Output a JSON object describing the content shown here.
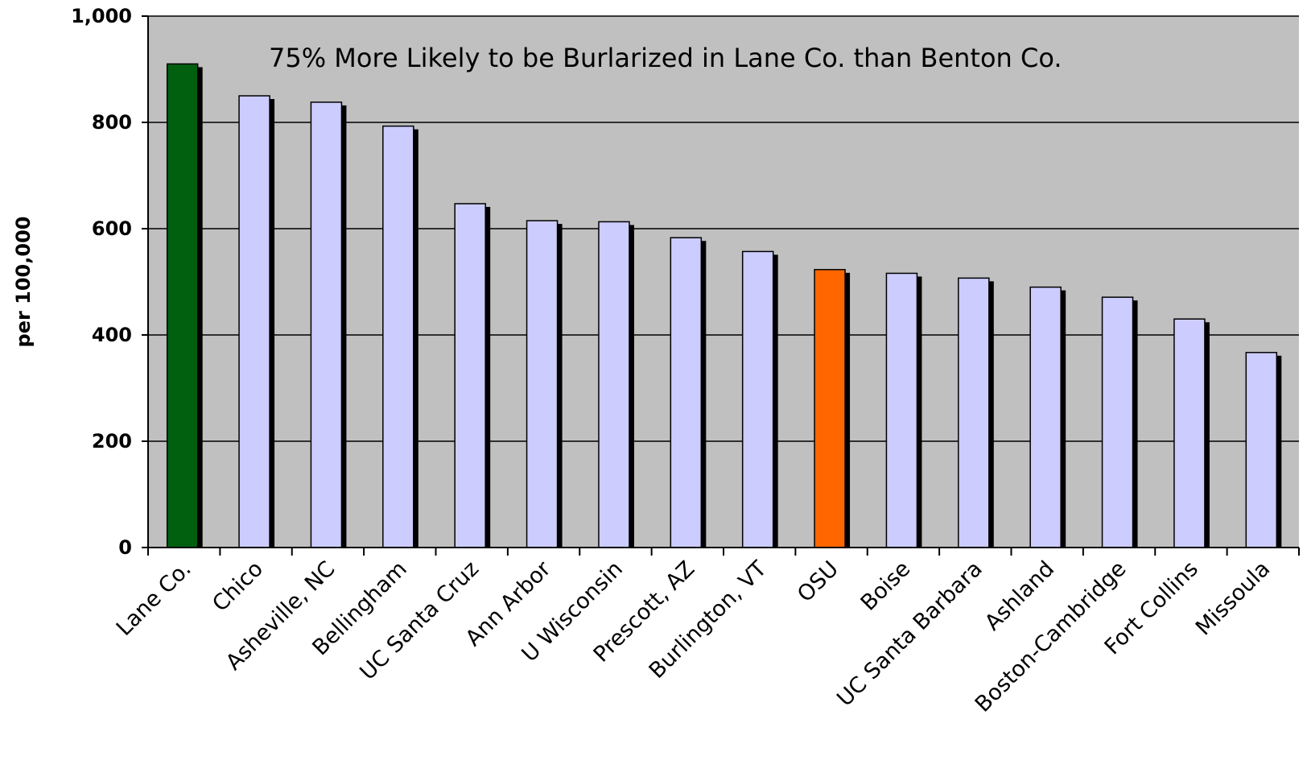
{
  "chart_data": {
    "type": "bar",
    "title": "",
    "xlabel": "",
    "ylabel": "per 100,000",
    "ylim": [
      0,
      1000
    ],
    "yticks": [
      0,
      200,
      400,
      600,
      800,
      1000
    ],
    "ytick_labels": [
      "0",
      "200",
      "400",
      "600",
      "800",
      "1,000"
    ],
    "grid": true,
    "legend": "none",
    "annotation": "75% More Likely to be Burlarized in Lane Co. than Benton Co.",
    "categories": [
      "Lane Co.",
      "Chico",
      "Asheville, NC",
      "Bellingham",
      "UC Santa Cruz",
      "Ann Arbor",
      "U Wisconsin",
      "Prescott, AZ",
      "Burlington, VT",
      "OSU",
      "Boise",
      "UC Santa Barbara",
      "Ashland",
      "Boston-Cambridge",
      "Fort Collins",
      "Missoula"
    ],
    "values": [
      910,
      850,
      838,
      793,
      647,
      615,
      613,
      583,
      557,
      523,
      516,
      507,
      490,
      471,
      430,
      367
    ],
    "colors": {
      "default_bar": "#ccccff",
      "highlight_lane": "#006010",
      "highlight_osu": "#ff6600",
      "plot_background": "#c0c0c0",
      "gridline": "#000000",
      "shadow": "#000000"
    },
    "bar_colors": [
      "#006010",
      "#ccccff",
      "#ccccff",
      "#ccccff",
      "#ccccff",
      "#ccccff",
      "#ccccff",
      "#ccccff",
      "#ccccff",
      "#ff6600",
      "#ccccff",
      "#ccccff",
      "#ccccff",
      "#ccccff",
      "#ccccff",
      "#ccccff"
    ]
  }
}
